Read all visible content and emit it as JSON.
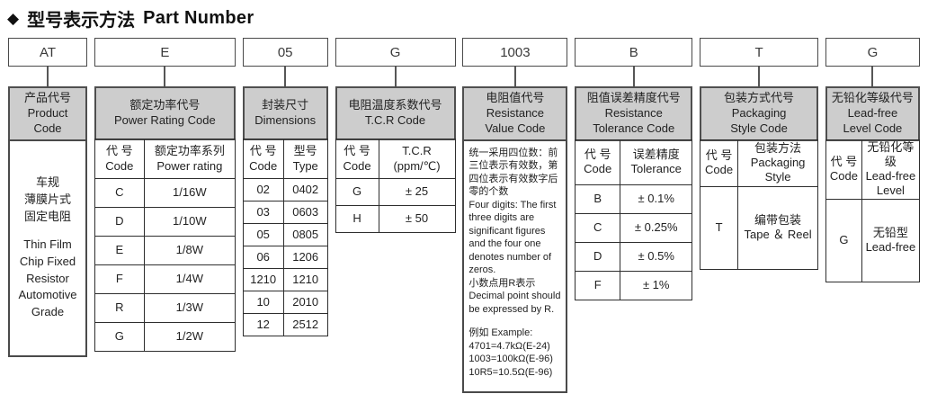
{
  "title": {
    "diamond": "◆",
    "zh": "型号表示方法",
    "en": "Part Number"
  },
  "colors": {
    "background": "#ffffff",
    "header_bg": "#cdcdcd",
    "box_border": "#4a4a4a",
    "table_border": "#2e2e2e",
    "text": "#1c1c1c"
  },
  "product": {
    "code": "AT",
    "header_zh": "产品代号",
    "header_en1": "Product",
    "header_en2": "Code",
    "body_zh": [
      "车规",
      "薄膜片式",
      "固定电阻"
    ],
    "body_en": [
      "Thin Film",
      "Chip Fixed",
      "Resistor",
      "Automotive",
      "Grade"
    ]
  },
  "power": {
    "code": "E",
    "header_zh": "额定功率代号",
    "header_en": "Power Rating Code",
    "th_code_zh": "代 号",
    "th_code_en": "Code",
    "th_value_zh": "额定功率系列",
    "th_value_en": "Power rating",
    "rows": [
      {
        "code": "C",
        "value": "1/16W"
      },
      {
        "code": "D",
        "value": "1/10W"
      },
      {
        "code": "E",
        "value": "1/8W"
      },
      {
        "code": "F",
        "value": "1/4W"
      },
      {
        "code": "R",
        "value": "1/3W"
      },
      {
        "code": "G",
        "value": "1/2W"
      }
    ]
  },
  "dimensions": {
    "code": "05",
    "header_zh": "封装尺寸",
    "header_en": "Dimensions",
    "th_code_zh": "代 号",
    "th_code_en": "Code",
    "th_value_zh": "型号",
    "th_value_en": "Type",
    "rows": [
      {
        "code": "02",
        "value": "0402"
      },
      {
        "code": "03",
        "value": "0603"
      },
      {
        "code": "05",
        "value": "0805"
      },
      {
        "code": "06",
        "value": "1206"
      },
      {
        "code": "1210",
        "value": "1210"
      },
      {
        "code": "10",
        "value": "2010"
      },
      {
        "code": "12",
        "value": "2512"
      }
    ]
  },
  "tcr": {
    "code": "G",
    "header_zh": "电阻温度系数代号",
    "header_en": "T.C.R Code",
    "th_code_zh": "代 号",
    "th_code_en": "Code",
    "th_value_l1": "T.C.R",
    "th_value_l2": "(ppm/℃)",
    "rows": [
      {
        "code": "G",
        "value": "± 25"
      },
      {
        "code": "H",
        "value": "± 50"
      }
    ]
  },
  "resistance": {
    "code": "1003",
    "header_zh": "电阻值代号",
    "header_en1": "Resistance",
    "header_en2": "Value Code",
    "para1_zh": "统一采用四位数：前三位表示有效数，第四位表示有效数字后零的个数",
    "para1_en": "Four digits: The first three digits are significant figures and the four one denotes number of zeros.",
    "para2_zh": "小数点用R表示",
    "para2_en": "Decimal point should be expressed by R.",
    "example_label": "例如  Example:",
    "examples": [
      "4701=4.7kΩ(E-24)",
      "1003=100kΩ(E-96)",
      "10R5=10.5Ω(E-96)"
    ]
  },
  "tolerance": {
    "code": "B",
    "header_zh": "阻值误差精度代号",
    "header_en1": "Resistance",
    "header_en2": "Tolerance Code",
    "th_code_zh": "代 号",
    "th_code_en": "Code",
    "th_value_zh": "误差精度",
    "th_value_en": "Tolerance",
    "rows": [
      {
        "code": "B",
        "value": "± 0.1%"
      },
      {
        "code": "C",
        "value": "± 0.25%"
      },
      {
        "code": "D",
        "value": "± 0.5%"
      },
      {
        "code": "F",
        "value": "± 1%"
      }
    ]
  },
  "packaging": {
    "code": "T",
    "header_zh": "包装方式代号",
    "header_en1": "Packaging",
    "header_en2": "Style Code",
    "th_code_zh": "代 号",
    "th_code_en": "Code",
    "th_value_l1": "包装方法",
    "th_value_l2": "Packaging",
    "th_value_l3": "Style",
    "rows": [
      {
        "code": "T",
        "value_zh": "编带包装",
        "value_en": "Tape ＆ Reel"
      }
    ]
  },
  "leadfree": {
    "code": "G",
    "header_zh": "无铅化等级代号",
    "header_en1": "Lead-free",
    "header_en2": "Level Code",
    "th_code_zh": "代 号",
    "th_code_en": "Code",
    "th_value_l1": "无铅化等级",
    "th_value_l2": "Lead-free",
    "th_value_l3": "Level",
    "rows": [
      {
        "code": "G",
        "value_zh": "无铅型",
        "value_en": "Lead-free"
      }
    ]
  }
}
